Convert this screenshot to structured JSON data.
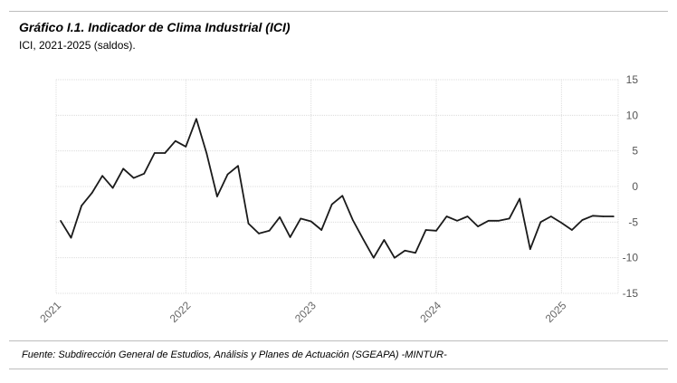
{
  "header": {
    "title": "Gráfico I.1. Indicador de Clima Industrial (ICI)",
    "subtitle": "ICI, 2021-2025 (saldos)."
  },
  "footer": {
    "source": "Fuente: Subdirección General de Estudios, Análisis y Planes de Actuación (SGEAPA) -MINTUR-"
  },
  "chart_data": {
    "type": "line",
    "title": "",
    "xlabel": "",
    "ylabel": "",
    "ylim": [
      -15,
      15
    ],
    "yticks": [
      -15,
      -10,
      -5,
      0,
      5,
      10,
      15
    ],
    "yaxis_position": "right",
    "xticks": [
      "2021",
      "2022",
      "2023",
      "2024",
      "2025"
    ],
    "grid": true,
    "line_color": "#1a1a1a",
    "series": [
      {
        "x": [
          "2021-01",
          "2021-02",
          "2021-03",
          "2021-04",
          "2021-05",
          "2021-06",
          "2021-07",
          "2021-08",
          "2021-09",
          "2021-10",
          "2021-11",
          "2021-12",
          "2022-01",
          "2022-02",
          "2022-03",
          "2022-04",
          "2022-05",
          "2022-06",
          "2022-07",
          "2022-08",
          "2022-09",
          "2022-10",
          "2022-11",
          "2022-12",
          "2023-01",
          "2023-02",
          "2023-03",
          "2023-04",
          "2023-05",
          "2023-06",
          "2023-07",
          "2023-08",
          "2023-09",
          "2023-10",
          "2023-11",
          "2023-12",
          "2024-01",
          "2024-02",
          "2024-03",
          "2024-04",
          "2024-05",
          "2024-06",
          "2024-07",
          "2024-08",
          "2024-09",
          "2024-10",
          "2024-11",
          "2024-12",
          "2025-01",
          "2025-02",
          "2025-03",
          "2025-04",
          "2025-05",
          "2025-06"
        ],
        "values": [
          -4.8,
          -7.2,
          -2.7,
          -0.9,
          1.5,
          -0.2,
          2.5,
          1.2,
          1.8,
          4.7,
          4.7,
          6.4,
          5.6,
          9.5,
          4.6,
          -1.4,
          1.7,
          2.9,
          -5.2,
          -6.6,
          -6.2,
          -4.3,
          -7.1,
          -4.5,
          -4.9,
          -6.1,
          -2.5,
          -1.3,
          -4.7,
          -7.4,
          -10.0,
          -7.5,
          -10.0,
          -9.0,
          -9.3,
          -6.1,
          -6.2,
          -4.2,
          -4.8,
          -4.2,
          -5.6,
          -4.8,
          -4.8,
          -4.5,
          -1.7,
          -8.8,
          -5.0,
          -4.2,
          -5.1,
          -6.1,
          -4.7,
          -4.1,
          -4.2,
          -4.2
        ]
      }
    ]
  }
}
